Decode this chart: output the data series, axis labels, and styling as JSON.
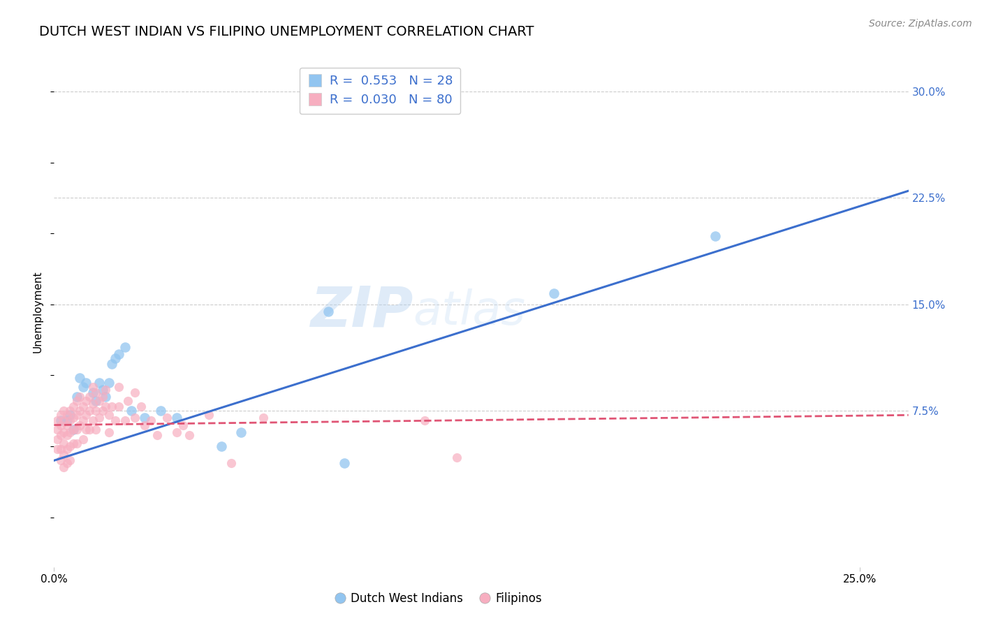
{
  "title": "DUTCH WEST INDIAN VS FILIPINO UNEMPLOYMENT CORRELATION CHART",
  "source": "Source: ZipAtlas.com",
  "ylabel": "Unemployment",
  "xlim": [
    0.0,
    0.265
  ],
  "ylim": [
    -0.035,
    0.325
  ],
  "blue_color": "#92c5f0",
  "pink_color": "#f7aec0",
  "blue_line_color": "#3c6fcd",
  "pink_line_color": "#e05575",
  "legend_r_blue": "0.553",
  "legend_n_blue": "28",
  "legend_r_pink": "0.030",
  "legend_n_pink": "80",
  "watermark_zip": "ZIP",
  "watermark_atlas": "atlas",
  "legend_label_blue": "Dutch West Indians",
  "legend_label_pink": "Filipinos",
  "blue_points": [
    [
      0.002,
      0.068
    ],
    [
      0.004,
      0.068
    ],
    [
      0.005,
      0.072
    ],
    [
      0.006,
      0.062
    ],
    [
      0.007,
      0.085
    ],
    [
      0.008,
      0.098
    ],
    [
      0.009,
      0.092
    ],
    [
      0.01,
      0.095
    ],
    [
      0.012,
      0.088
    ],
    [
      0.013,
      0.082
    ],
    [
      0.014,
      0.095
    ],
    [
      0.015,
      0.09
    ],
    [
      0.016,
      0.085
    ],
    [
      0.017,
      0.095
    ],
    [
      0.018,
      0.108
    ],
    [
      0.019,
      0.112
    ],
    [
      0.02,
      0.115
    ],
    [
      0.022,
      0.12
    ],
    [
      0.024,
      0.075
    ],
    [
      0.028,
      0.07
    ],
    [
      0.033,
      0.075
    ],
    [
      0.038,
      0.07
    ],
    [
      0.052,
      0.05
    ],
    [
      0.058,
      0.06
    ],
    [
      0.085,
      0.145
    ],
    [
      0.09,
      0.038
    ],
    [
      0.155,
      0.158
    ],
    [
      0.205,
      0.198
    ]
  ],
  "pink_points": [
    [
      0.001,
      0.068
    ],
    [
      0.001,
      0.062
    ],
    [
      0.001,
      0.055
    ],
    [
      0.001,
      0.048
    ],
    [
      0.002,
      0.072
    ],
    [
      0.002,
      0.065
    ],
    [
      0.002,
      0.058
    ],
    [
      0.002,
      0.048
    ],
    [
      0.002,
      0.04
    ],
    [
      0.003,
      0.075
    ],
    [
      0.003,
      0.068
    ],
    [
      0.003,
      0.06
    ],
    [
      0.003,
      0.052
    ],
    [
      0.003,
      0.044
    ],
    [
      0.003,
      0.035
    ],
    [
      0.004,
      0.072
    ],
    [
      0.004,
      0.065
    ],
    [
      0.004,
      0.058
    ],
    [
      0.004,
      0.048
    ],
    [
      0.004,
      0.038
    ],
    [
      0.005,
      0.075
    ],
    [
      0.005,
      0.068
    ],
    [
      0.005,
      0.06
    ],
    [
      0.005,
      0.05
    ],
    [
      0.005,
      0.04
    ],
    [
      0.006,
      0.078
    ],
    [
      0.006,
      0.07
    ],
    [
      0.006,
      0.062
    ],
    [
      0.006,
      0.052
    ],
    [
      0.007,
      0.082
    ],
    [
      0.007,
      0.072
    ],
    [
      0.007,
      0.062
    ],
    [
      0.007,
      0.052
    ],
    [
      0.008,
      0.085
    ],
    [
      0.008,
      0.075
    ],
    [
      0.008,
      0.065
    ],
    [
      0.009,
      0.078
    ],
    [
      0.009,
      0.068
    ],
    [
      0.009,
      0.055
    ],
    [
      0.01,
      0.082
    ],
    [
      0.01,
      0.072
    ],
    [
      0.01,
      0.062
    ],
    [
      0.011,
      0.085
    ],
    [
      0.011,
      0.075
    ],
    [
      0.011,
      0.062
    ],
    [
      0.012,
      0.092
    ],
    [
      0.012,
      0.08
    ],
    [
      0.012,
      0.068
    ],
    [
      0.013,
      0.088
    ],
    [
      0.013,
      0.075
    ],
    [
      0.013,
      0.062
    ],
    [
      0.014,
      0.082
    ],
    [
      0.014,
      0.07
    ],
    [
      0.015,
      0.085
    ],
    [
      0.015,
      0.075
    ],
    [
      0.016,
      0.09
    ],
    [
      0.016,
      0.078
    ],
    [
      0.017,
      0.072
    ],
    [
      0.017,
      0.06
    ],
    [
      0.018,
      0.078
    ],
    [
      0.019,
      0.068
    ],
    [
      0.02,
      0.092
    ],
    [
      0.02,
      0.078
    ],
    [
      0.022,
      0.068
    ],
    [
      0.023,
      0.082
    ],
    [
      0.025,
      0.088
    ],
    [
      0.025,
      0.07
    ],
    [
      0.027,
      0.078
    ],
    [
      0.028,
      0.065
    ],
    [
      0.03,
      0.068
    ],
    [
      0.032,
      0.058
    ],
    [
      0.035,
      0.07
    ],
    [
      0.038,
      0.06
    ],
    [
      0.04,
      0.065
    ],
    [
      0.042,
      0.058
    ],
    [
      0.048,
      0.072
    ],
    [
      0.055,
      0.038
    ],
    [
      0.065,
      0.07
    ],
    [
      0.115,
      0.068
    ],
    [
      0.125,
      0.042
    ]
  ],
  "blue_line": {
    "x0": 0.0,
    "y0": 0.04,
    "x1": 0.265,
    "y1": 0.23
  },
  "pink_line": {
    "x0": 0.0,
    "y0": 0.065,
    "x1": 0.265,
    "y1": 0.072
  },
  "grid_color": "#cccccc",
  "background_color": "#ffffff",
  "title_fontsize": 14,
  "axis_label_fontsize": 11,
  "tick_fontsize": 11,
  "source_fontsize": 10
}
